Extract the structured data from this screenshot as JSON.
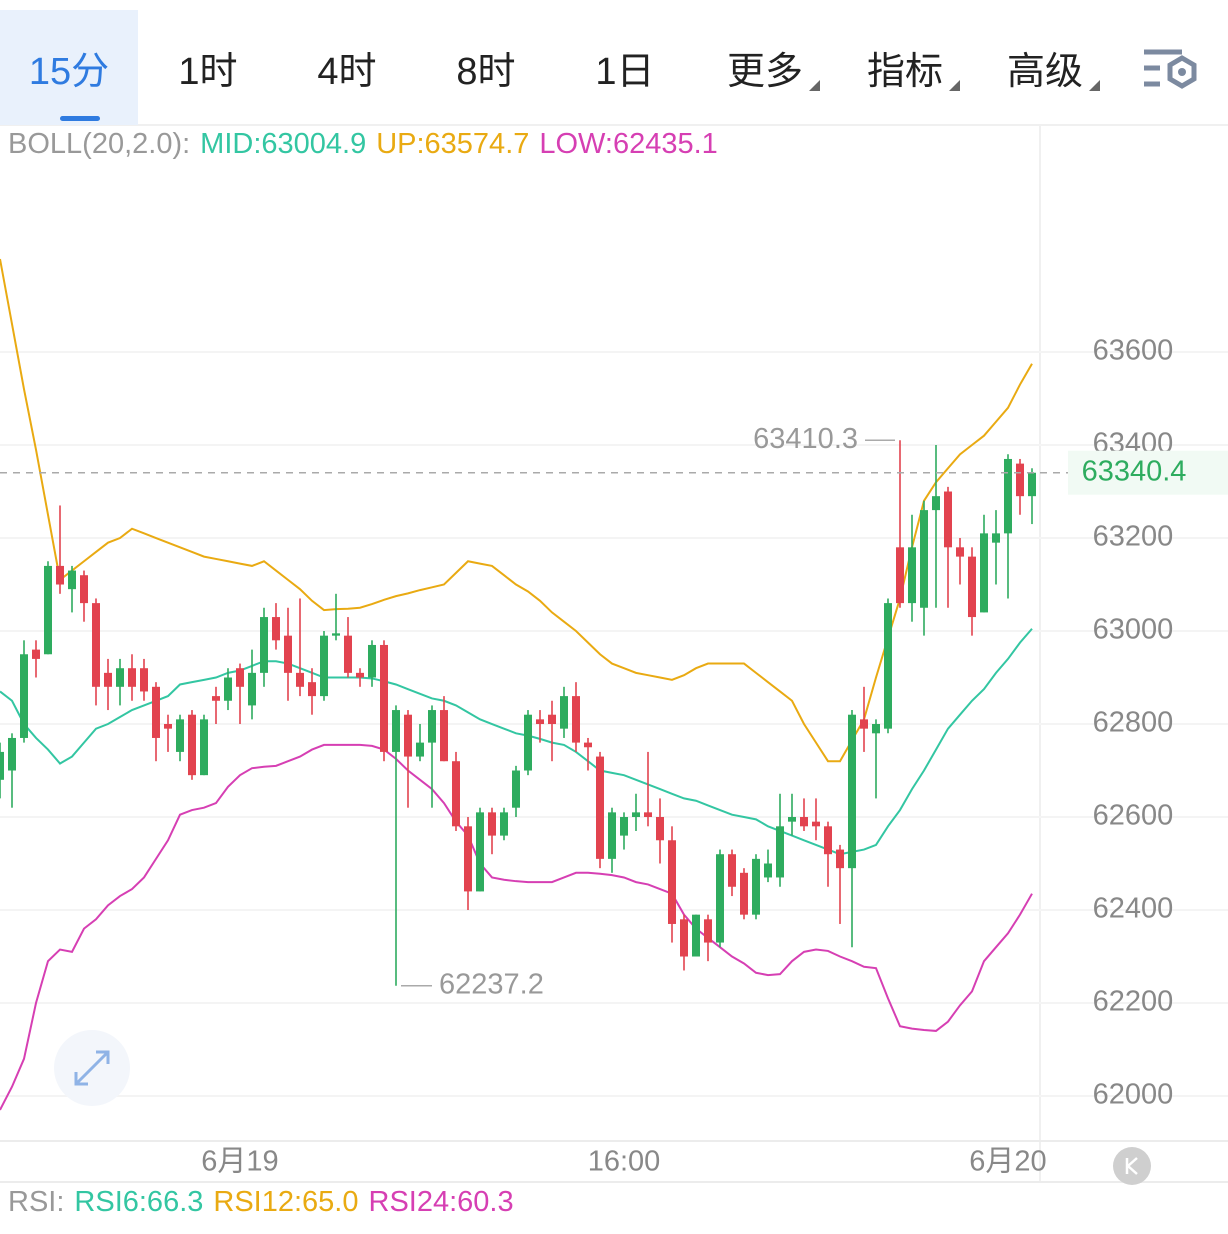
{
  "tabs": [
    "15分",
    "1时",
    "4时",
    "8时",
    "1日",
    "更多",
    "指标",
    "高级"
  ],
  "chart_data": {
    "type": "candlestick",
    "indicator": "BOLL(20,2.0):",
    "categories": [
      null,
      null,
      null,
      null,
      null,
      null,
      null,
      null,
      null,
      null,
      null,
      null,
      null,
      null,
      null,
      null,
      null,
      null,
      null,
      null,
      "6月19",
      null,
      null,
      null,
      null,
      null,
      null,
      null,
      null,
      null,
      null,
      null,
      null,
      null,
      null,
      null,
      null,
      null,
      null,
      null,
      null,
      null,
      null,
      null,
      null,
      null,
      null,
      null,
      null,
      null,
      null,
      null,
      "16:00",
      null,
      null,
      null,
      null,
      null,
      null,
      null,
      null,
      null,
      null,
      null,
      null,
      null,
      null,
      null,
      null,
      null,
      null,
      null,
      null,
      null,
      null,
      null,
      null,
      null,
      null,
      null,
      null,
      null,
      null,
      null,
      "6月20",
      null,
      null
    ],
    "open": [
      62680,
      62700,
      62770,
      62960,
      62950,
      63140,
      63090,
      63120,
      63060,
      62910,
      62880,
      62920,
      62920,
      62880,
      62800,
      62740,
      62820,
      62690,
      62860,
      62850,
      62920,
      62840,
      62910,
      63030,
      62990,
      62910,
      62890,
      62860,
      62990,
      62990,
      62910,
      62900,
      62970,
      62740,
      62820,
      62730,
      62760,
      62830,
      62720,
      62580,
      62440,
      62610,
      62560,
      62620,
      62700,
      62810,
      62820,
      62790,
      62860,
      62760,
      62730,
      62510,
      62560,
      62600,
      62610,
      62600,
      62550,
      62380,
      62300,
      62380,
      62330,
      62520,
      62480,
      62390,
      62470,
      62470,
      62590,
      62600,
      62590,
      62580,
      62530,
      62490,
      62810,
      62780,
      62790,
      63180,
      63060,
      63050,
      63260,
      63300,
      63180,
      63160,
      63040,
      63190,
      63210,
      63360,
      63290
    ],
    "high": [
      62760,
      62780,
      62980,
      62980,
      63150,
      63270,
      63140,
      63130,
      63070,
      62940,
      62940,
      62950,
      62940,
      62890,
      62820,
      62820,
      62830,
      62820,
      62880,
      62920,
      62930,
      62960,
      63050,
      63060,
      63050,
      63070,
      62920,
      63000,
      63080,
      63030,
      62920,
      62980,
      62980,
      62840,
      62830,
      62800,
      62840,
      62860,
      62740,
      62600,
      62620,
      62620,
      62620,
      62710,
      62830,
      62830,
      62850,
      62880,
      62890,
      62770,
      62740,
      62620,
      62610,
      62650,
      62740,
      62640,
      62580,
      62390,
      62390,
      62390,
      62530,
      62530,
      62490,
      62520,
      62530,
      62650,
      62650,
      62640,
      62640,
      62590,
      62540,
      62830,
      62880,
      62810,
      63070,
      63410.3,
      63250,
      63280,
      63400,
      63310,
      63200,
      63180,
      63250,
      63260,
      63380,
      63370,
      63350
    ],
    "low": [
      62640,
      62620,
      62760,
      62900,
      62950,
      63080,
      63040,
      63020,
      62840,
      62830,
      62840,
      62850,
      62850,
      62720,
      62740,
      62720,
      62680,
      62690,
      62800,
      62830,
      62800,
      62810,
      62880,
      62960,
      62850,
      62860,
      62820,
      62850,
      62980,
      62900,
      62880,
      62880,
      62720,
      62237.2,
      62620,
      62720,
      62620,
      62720,
      62570,
      62400,
      62440,
      62520,
      62550,
      62600,
      62690,
      62760,
      62720,
      62770,
      62740,
      62700,
      62490,
      62480,
      62530,
      62570,
      62580,
      62500,
      62330,
      62270,
      62300,
      62290,
      62320,
      62430,
      62380,
      62380,
      62460,
      62450,
      62560,
      62570,
      62550,
      62450,
      62370,
      62320,
      62740,
      62640,
      62780,
      63050,
      63020,
      62990,
      63050,
      63050,
      63100,
      62990,
      63040,
      63100,
      63070,
      63250,
      63230
    ],
    "close": [
      62740,
      62770,
      62950,
      62940,
      63140,
      63100,
      63130,
      63060,
      62880,
      62880,
      62920,
      62880,
      62870,
      62770,
      62790,
      62810,
      62690,
      62810,
      62850,
      62900,
      62880,
      62910,
      63030,
      62980,
      62910,
      62880,
      62860,
      62990,
      62995,
      62910,
      62900,
      62970,
      62740,
      62830,
      62730,
      62760,
      62830,
      62720,
      62580,
      62440,
      62610,
      62560,
      62610,
      62700,
      62820,
      62800,
      62800,
      62860,
      62760,
      62750,
      62510,
      62610,
      62600,
      62610,
      62600,
      62550,
      62370,
      62300,
      62390,
      62330,
      62520,
      62450,
      62390,
      62510,
      62500,
      62580,
      62600,
      62580,
      62580,
      62520,
      62490,
      62820,
      62790,
      62800,
      63060,
      63060,
      63180,
      63260,
      63290,
      63180,
      63160,
      63030,
      63210,
      63210,
      63370,
      63290,
      63340.4
    ],
    "up_color": "#2eac5f",
    "down_color": "#e2434f",
    "series": [
      {
        "name": "MID:63004.9",
        "color": "#33c6a2",
        "values": [
          62870,
          62850,
          62800,
          62770,
          62745,
          62715,
          62730,
          62760,
          62790,
          62800,
          62815,
          62830,
          62840,
          62850,
          62860,
          62885,
          62890,
          62895,
          62900,
          62910,
          62915,
          62925,
          62935,
          62935,
          62930,
          62920,
          62910,
          62900,
          62900,
          62900,
          62900,
          62898,
          62892,
          62885,
          62875,
          62865,
          62855,
          62850,
          62840,
          62825,
          62810,
          62800,
          62790,
          62780,
          62775,
          62768,
          62760,
          62755,
          62740,
          62720,
          62700,
          62695,
          62690,
          62680,
          62670,
          62660,
          62650,
          62640,
          62635,
          62625,
          62615,
          62605,
          62600,
          62595,
          62580,
          62570,
          62560,
          62550,
          62540,
          62530,
          62520,
          62525,
          62530,
          62540,
          62580,
          62615,
          62660,
          62700,
          62745,
          62790,
          62820,
          62850,
          62875,
          62910,
          62940,
          62975,
          63004.9
        ]
      },
      {
        "name": "UP:63574.7",
        "color": "#e9aa12",
        "values": [
          63800,
          63660,
          63520,
          63390,
          63250,
          63110,
          63130,
          63150,
          63170,
          63190,
          63200,
          63220,
          63210,
          63200,
          63190,
          63180,
          63170,
          63160,
          63155,
          63150,
          63145,
          63140,
          63150,
          63130,
          63110,
          63090,
          63065,
          63045,
          63047,
          63048,
          63050,
          63058,
          63067,
          63075,
          63081,
          63088,
          63094,
          63100,
          63125,
          63150,
          63145,
          63140,
          63120,
          63100,
          63085,
          63065,
          63040,
          63020,
          63000,
          62975,
          62950,
          62930,
          62920,
          62910,
          62905,
          62900,
          62895,
          62905,
          62920,
          62930,
          62930,
          62930,
          62930,
          62910,
          62890,
          62870,
          62850,
          62800,
          62760,
          62720,
          62720,
          62765,
          62810,
          62900,
          62985,
          63070,
          63180,
          63280,
          63320,
          63350,
          63380,
          63400,
          63420,
          63450,
          63480,
          63530,
          63574.7
        ]
      },
      {
        "name": "LOW:62435.1",
        "color": "#d63fb3",
        "values": [
          61970,
          62020,
          62080,
          62200,
          62290,
          62315,
          62310,
          62360,
          62380,
          62410,
          62430,
          62445,
          62470,
          62510,
          62550,
          62605,
          62615,
          62620,
          62630,
          62665,
          62690,
          62705,
          62708,
          62710,
          62720,
          62730,
          62745,
          62755,
          62755,
          62755,
          62755,
          62753,
          62745,
          62725,
          62700,
          62680,
          62660,
          62630,
          62590,
          62560,
          62500,
          62470,
          62465,
          62462,
          62460,
          62460,
          62460,
          62470,
          62480,
          62480,
          62478,
          62475,
          62470,
          62460,
          62455,
          62445,
          62435,
          62390,
          62360,
          62340,
          62320,
          62300,
          62285,
          62265,
          62260,
          62262,
          62290,
          62310,
          62315,
          62312,
          62300,
          62290,
          62278,
          62275,
          62210,
          62150,
          62145,
          62142,
          62140,
          62160,
          62195,
          62225,
          62290,
          62320,
          62350,
          62390,
          62435.1
        ]
      }
    ],
    "ylim": [
      61905.4,
      64088.2
    ],
    "yticks": [
      62000,
      62200,
      62400,
      62600,
      62800,
      63000,
      63200,
      63400,
      63600
    ],
    "grid": true
  },
  "rsi": {
    "label": "RSI:",
    "items": [
      {
        "text": "RSI6:66.3",
        "color": "#33c6a2"
      },
      {
        "text": "RSI12:65.0",
        "color": "#e9aa12"
      },
      {
        "text": "RSI24:60.3",
        "color": "#d63fb3"
      }
    ]
  }
}
